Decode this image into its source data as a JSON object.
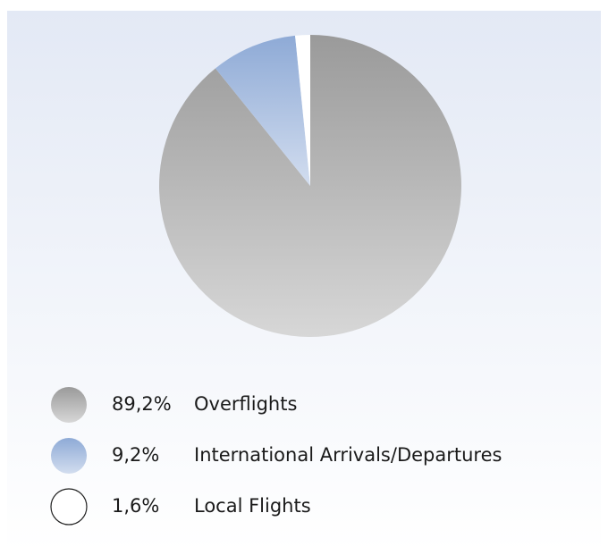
{
  "chart_data": {
    "type": "pie",
    "categories": [
      "Overflights",
      "International Arrivals/Departures",
      "Local Flights"
    ],
    "values": [
      89.2,
      9.2,
      1.6
    ],
    "value_labels": [
      "89,2%",
      "9,2%",
      "1,6%"
    ],
    "colors": [
      "#9a9a9a",
      "#8eaad6",
      "#ffffff"
    ]
  }
}
